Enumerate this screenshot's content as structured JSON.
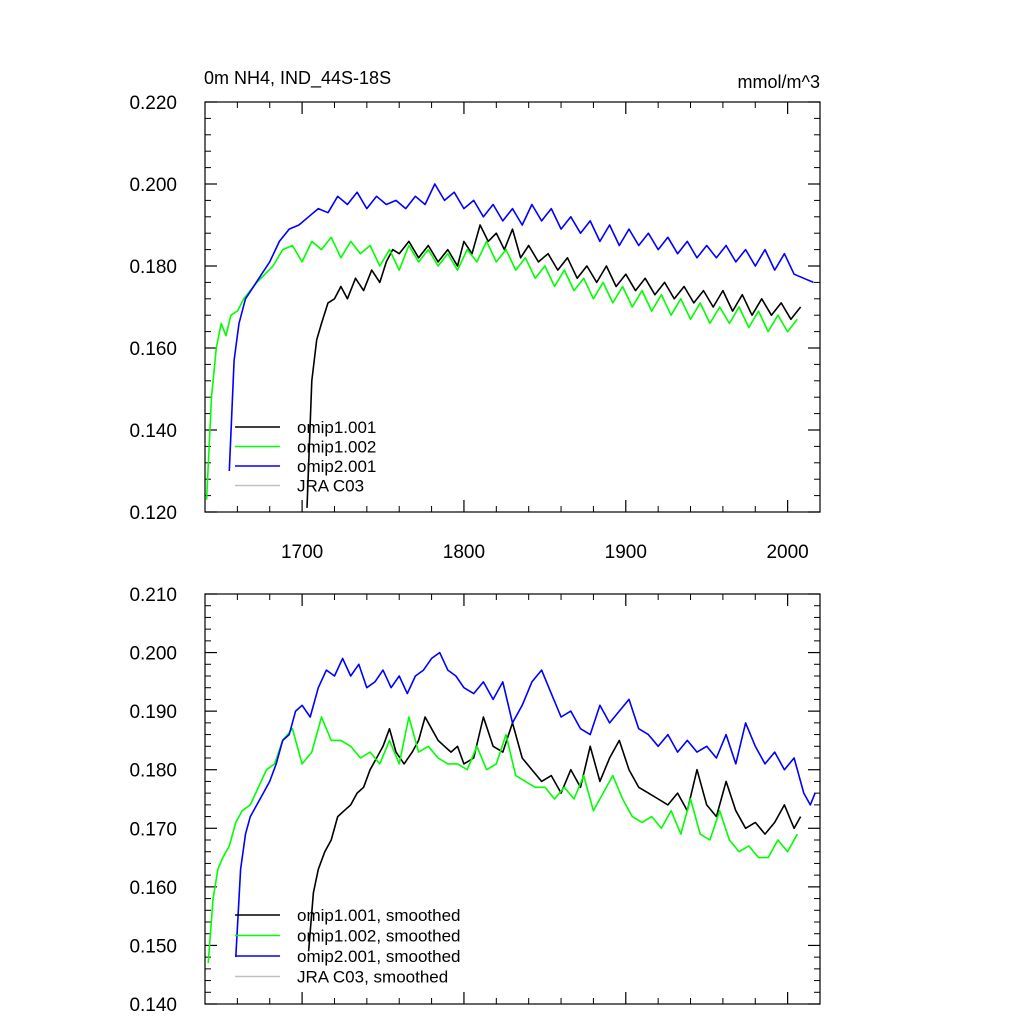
{
  "chart_data": [
    {
      "type": "line",
      "title": "0m NH4, IND_44S-18S",
      "units": "mmol/m^3",
      "xlim": [
        1640,
        2020
      ],
      "ylim": [
        0.12,
        0.22
      ],
      "xticks": [
        1700,
        1800,
        1900,
        2000
      ],
      "xtick_labels": [
        "1700",
        "1800",
        "1900",
        "2000"
      ],
      "yticks": [
        0.12,
        0.14,
        0.16,
        0.18,
        0.2,
        0.22
      ],
      "ytick_labels": [
        "0.120",
        "0.140",
        "0.160",
        "0.180",
        "0.200",
        "0.220"
      ],
      "legend_position": "bottom-left",
      "series": [
        {
          "name": "omip1.001",
          "color": "#000000",
          "x": [
            1703,
            1706,
            1709,
            1712,
            1716,
            1720,
            1724,
            1728,
            1733,
            1738,
            1743,
            1748,
            1752,
            1756,
            1760,
            1766,
            1772,
            1778,
            1784,
            1790,
            1796,
            1800,
            1805,
            1810,
            1815,
            1820,
            1825,
            1830,
            1835,
            1840,
            1846,
            1852,
            1858,
            1864,
            1870,
            1876,
            1882,
            1888,
            1894,
            1900,
            1906,
            1912,
            1918,
            1924,
            1930,
            1936,
            1942,
            1948,
            1954,
            1960,
            1966,
            1972,
            1978,
            1984,
            1990,
            1996,
            2002,
            2008
          ],
          "values": [
            0.121,
            0.152,
            0.162,
            0.166,
            0.171,
            0.172,
            0.175,
            0.172,
            0.177,
            0.174,
            0.179,
            0.176,
            0.181,
            0.184,
            0.183,
            0.186,
            0.182,
            0.185,
            0.181,
            0.184,
            0.18,
            0.186,
            0.183,
            0.19,
            0.186,
            0.188,
            0.184,
            0.189,
            0.182,
            0.185,
            0.181,
            0.183,
            0.179,
            0.182,
            0.177,
            0.18,
            0.176,
            0.18,
            0.175,
            0.178,
            0.174,
            0.177,
            0.173,
            0.176,
            0.172,
            0.175,
            0.171,
            0.174,
            0.17,
            0.174,
            0.169,
            0.173,
            0.168,
            0.172,
            0.168,
            0.171,
            0.167,
            0.17
          ]
        },
        {
          "name": "omip1.002",
          "color": "#00ff00",
          "x": [
            1641,
            1644,
            1647,
            1650,
            1653,
            1656,
            1660,
            1664,
            1668,
            1672,
            1677,
            1682,
            1688,
            1694,
            1700,
            1706,
            1712,
            1718,
            1724,
            1730,
            1736,
            1742,
            1748,
            1754,
            1760,
            1766,
            1772,
            1778,
            1784,
            1790,
            1796,
            1802,
            1808,
            1814,
            1820,
            1826,
            1832,
            1838,
            1844,
            1850,
            1856,
            1862,
            1868,
            1874,
            1880,
            1886,
            1892,
            1898,
            1904,
            1910,
            1916,
            1922,
            1928,
            1934,
            1940,
            1946,
            1952,
            1958,
            1964,
            1970,
            1976,
            1982,
            1988,
            1994,
            2000,
            2006
          ],
          "values": [
            0.123,
            0.148,
            0.16,
            0.166,
            0.163,
            0.168,
            0.169,
            0.172,
            0.174,
            0.176,
            0.178,
            0.18,
            0.184,
            0.185,
            0.181,
            0.186,
            0.184,
            0.187,
            0.182,
            0.186,
            0.183,
            0.185,
            0.18,
            0.184,
            0.179,
            0.185,
            0.181,
            0.184,
            0.18,
            0.183,
            0.179,
            0.184,
            0.181,
            0.186,
            0.181,
            0.184,
            0.179,
            0.182,
            0.177,
            0.18,
            0.175,
            0.179,
            0.174,
            0.177,
            0.172,
            0.176,
            0.171,
            0.175,
            0.17,
            0.174,
            0.169,
            0.173,
            0.168,
            0.172,
            0.167,
            0.171,
            0.166,
            0.17,
            0.166,
            0.17,
            0.165,
            0.169,
            0.164,
            0.168,
            0.164,
            0.167
          ]
        },
        {
          "name": "omip2.001",
          "color": "#0000ff",
          "x": [
            1655,
            1658,
            1661,
            1665,
            1670,
            1675,
            1680,
            1686,
            1692,
            1698,
            1704,
            1710,
            1716,
            1722,
            1728,
            1734,
            1740,
            1746,
            1752,
            1758,
            1764,
            1770,
            1776,
            1782,
            1788,
            1794,
            1800,
            1806,
            1812,
            1818,
            1824,
            1830,
            1836,
            1842,
            1848,
            1854,
            1860,
            1866,
            1872,
            1878,
            1884,
            1890,
            1896,
            1902,
            1908,
            1914,
            1920,
            1926,
            1932,
            1938,
            1944,
            1950,
            1956,
            1962,
            1968,
            1974,
            1980,
            1986,
            1992,
            1998,
            2004,
            2010,
            2016
          ],
          "values": [
            0.13,
            0.157,
            0.166,
            0.172,
            0.175,
            0.178,
            0.181,
            0.186,
            0.189,
            0.19,
            0.192,
            0.194,
            0.193,
            0.197,
            0.195,
            0.198,
            0.194,
            0.197,
            0.195,
            0.196,
            0.194,
            0.197,
            0.195,
            0.2,
            0.196,
            0.198,
            0.194,
            0.196,
            0.192,
            0.195,
            0.191,
            0.194,
            0.19,
            0.195,
            0.191,
            0.194,
            0.189,
            0.192,
            0.188,
            0.191,
            0.186,
            0.19,
            0.185,
            0.189,
            0.185,
            0.188,
            0.184,
            0.187,
            0.183,
            0.186,
            0.182,
            0.185,
            0.182,
            0.185,
            0.181,
            0.184,
            0.18,
            0.184,
            0.179,
            0.183,
            0.178,
            0.177,
            0.176
          ]
        },
        {
          "name": "JRA C03",
          "color": "#c0c0c0",
          "x": [],
          "values": []
        }
      ]
    },
    {
      "type": "line",
      "title": "",
      "xlim": [
        1640,
        2020
      ],
      "ylim": [
        0.14,
        0.21
      ],
      "xticks": [
        1700,
        1800,
        1900,
        2000
      ],
      "yticks": [
        0.14,
        0.15,
        0.16,
        0.17,
        0.18,
        0.19,
        0.2,
        0.21
      ],
      "ytick_labels": [
        "0.140",
        "0.150",
        "0.160",
        "0.170",
        "0.180",
        "0.190",
        "0.200",
        "0.210"
      ],
      "legend_position": "bottom-left",
      "series": [
        {
          "name": "omip1.001, smoothed",
          "color": "#000000",
          "x": [
            1704,
            1707,
            1710,
            1714,
            1718,
            1722,
            1726,
            1730,
            1734,
            1738,
            1742,
            1746,
            1750,
            1754,
            1758,
            1763,
            1768,
            1772,
            1776,
            1780,
            1784,
            1788,
            1792,
            1796,
            1800,
            1806,
            1812,
            1818,
            1824,
            1830,
            1836,
            1842,
            1848,
            1854,
            1860,
            1866,
            1872,
            1878,
            1884,
            1890,
            1896,
            1902,
            1908,
            1914,
            1920,
            1926,
            1932,
            1938,
            1944,
            1950,
            1956,
            1962,
            1968,
            1974,
            1980,
            1986,
            1992,
            1998,
            2004,
            2008
          ],
          "values": [
            0.149,
            0.159,
            0.163,
            0.166,
            0.168,
            0.172,
            0.173,
            0.174,
            0.176,
            0.177,
            0.18,
            0.182,
            0.184,
            0.187,
            0.183,
            0.181,
            0.183,
            0.185,
            0.189,
            0.187,
            0.185,
            0.184,
            0.183,
            0.184,
            0.181,
            0.182,
            0.189,
            0.184,
            0.183,
            0.188,
            0.182,
            0.18,
            0.178,
            0.179,
            0.176,
            0.18,
            0.177,
            0.184,
            0.178,
            0.182,
            0.185,
            0.18,
            0.177,
            0.176,
            0.175,
            0.174,
            0.176,
            0.173,
            0.18,
            0.174,
            0.172,
            0.178,
            0.173,
            0.17,
            0.171,
            0.169,
            0.171,
            0.174,
            0.17,
            0.172
          ]
        },
        {
          "name": "omip1.002, smoothed",
          "color": "#00ff00",
          "x": [
            1642,
            1645,
            1648,
            1651,
            1655,
            1659,
            1663,
            1668,
            1673,
            1678,
            1683,
            1688,
            1694,
            1700,
            1706,
            1712,
            1718,
            1724,
            1730,
            1736,
            1742,
            1748,
            1754,
            1760,
            1766,
            1772,
            1778,
            1784,
            1790,
            1796,
            1802,
            1808,
            1814,
            1820,
            1826,
            1832,
            1838,
            1844,
            1850,
            1856,
            1862,
            1868,
            1874,
            1880,
            1886,
            1892,
            1898,
            1904,
            1910,
            1916,
            1922,
            1928,
            1934,
            1940,
            1946,
            1952,
            1958,
            1964,
            1970,
            1976,
            1982,
            1988,
            1994,
            2000,
            2006
          ],
          "values": [
            0.147,
            0.158,
            0.163,
            0.165,
            0.167,
            0.171,
            0.173,
            0.174,
            0.177,
            0.18,
            0.181,
            0.185,
            0.187,
            0.181,
            0.183,
            0.189,
            0.185,
            0.185,
            0.184,
            0.182,
            0.183,
            0.181,
            0.185,
            0.181,
            0.189,
            0.183,
            0.184,
            0.182,
            0.181,
            0.181,
            0.18,
            0.184,
            0.18,
            0.181,
            0.186,
            0.179,
            0.178,
            0.177,
            0.177,
            0.175,
            0.177,
            0.175,
            0.179,
            0.173,
            0.176,
            0.179,
            0.175,
            0.172,
            0.171,
            0.172,
            0.17,
            0.173,
            0.169,
            0.175,
            0.169,
            0.168,
            0.173,
            0.168,
            0.166,
            0.167,
            0.165,
            0.165,
            0.168,
            0.166,
            0.169
          ]
        },
        {
          "name": "omip2.001, smoothed",
          "color": "#0000ff",
          "x": [
            1659,
            1662,
            1665,
            1668,
            1672,
            1676,
            1680,
            1684,
            1688,
            1692,
            1696,
            1700,
            1705,
            1710,
            1715,
            1720,
            1725,
            1730,
            1735,
            1740,
            1745,
            1750,
            1755,
            1760,
            1765,
            1770,
            1775,
            1780,
            1785,
            1790,
            1795,
            1800,
            1806,
            1812,
            1818,
            1824,
            1830,
            1836,
            1842,
            1848,
            1854,
            1860,
            1866,
            1872,
            1878,
            1884,
            1890,
            1896,
            1902,
            1908,
            1914,
            1920,
            1926,
            1932,
            1938,
            1944,
            1950,
            1956,
            1962,
            1968,
            1974,
            1980,
            1986,
            1992,
            1998,
            2004,
            2010,
            2014,
            2017
          ],
          "values": [
            0.148,
            0.163,
            0.169,
            0.172,
            0.174,
            0.176,
            0.178,
            0.181,
            0.185,
            0.186,
            0.19,
            0.191,
            0.189,
            0.194,
            0.197,
            0.196,
            0.199,
            0.196,
            0.198,
            0.194,
            0.195,
            0.197,
            0.194,
            0.196,
            0.193,
            0.196,
            0.197,
            0.199,
            0.2,
            0.197,
            0.196,
            0.194,
            0.193,
            0.195,
            0.192,
            0.195,
            0.188,
            0.191,
            0.195,
            0.197,
            0.193,
            0.189,
            0.19,
            0.187,
            0.186,
            0.191,
            0.188,
            0.19,
            0.192,
            0.187,
            0.186,
            0.184,
            0.186,
            0.183,
            0.185,
            0.183,
            0.184,
            0.182,
            0.186,
            0.181,
            0.188,
            0.184,
            0.181,
            0.183,
            0.18,
            0.182,
            0.176,
            0.174,
            0.176
          ]
        },
        {
          "name": "JRA C03, smoothed",
          "color": "#c0c0c0",
          "x": [],
          "values": []
        }
      ]
    }
  ]
}
